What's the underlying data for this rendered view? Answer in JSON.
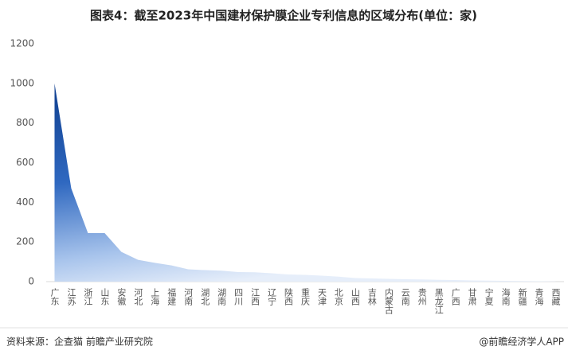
{
  "chart_data": {
    "type": "area",
    "title": "图表4：截至2023年中国建材保护膜企业专利信息的区域分布(单位：家)",
    "categories": [
      "广东",
      "江苏",
      "浙江",
      "山东",
      "安徽",
      "河北",
      "上海",
      "福建",
      "河南",
      "湖北",
      "湖南",
      "四川",
      "江西",
      "辽宁",
      "陕西",
      "重庆",
      "天津",
      "北京",
      "山西",
      "吉林",
      "内蒙古",
      "云南",
      "贵州",
      "黑龙江",
      "广西",
      "甘肃",
      "宁夏",
      "海南",
      "新疆",
      "青海",
      "西藏"
    ],
    "values": [
      1000,
      470,
      245,
      245,
      150,
      110,
      95,
      82,
      62,
      58,
      55,
      48,
      47,
      42,
      36,
      34,
      30,
      25,
      18,
      16,
      14,
      12,
      11,
      9,
      8,
      6,
      5,
      4,
      3,
      2,
      1
    ],
    "color": "#1a4a9a",
    "ylim": [
      0,
      1200
    ],
    "yticks": [
      0,
      200,
      400,
      600,
      800,
      1000,
      1200
    ],
    "source": "资料来源：企查猫 前瞻产业研究院",
    "brand": "@前瞻经济学人APP"
  }
}
